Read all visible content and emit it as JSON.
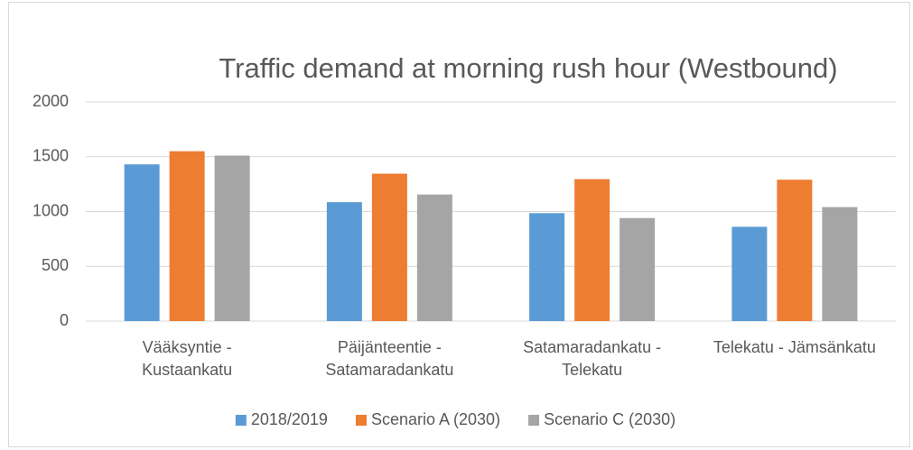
{
  "chart_data": {
    "type": "bar",
    "title": "Traffic demand at morning rush hour (Westbound)",
    "categories": [
      "Vääksyntie - Kustaankatu",
      "Päijänteentie - Satamaradankatu",
      "Satamaradankatu - Telekatu",
      "Telekatu - Jämsänkatu"
    ],
    "series": [
      {
        "name": "2018/2019",
        "color": "#5b9bd5",
        "values": [
          1430,
          1085,
          985,
          860
        ]
      },
      {
        "name": "Scenario A (2030)",
        "color": "#ed7d31",
        "values": [
          1550,
          1345,
          1295,
          1290
        ]
      },
      {
        "name": "Scenario C (2030)",
        "color": "#a5a5a5",
        "values": [
          1510,
          1155,
          940,
          1040
        ]
      }
    ],
    "ylim": [
      0,
      2000
    ],
    "yticks": [
      0,
      500,
      1000,
      1500,
      2000
    ],
    "grid": true,
    "legend": "bottom"
  }
}
